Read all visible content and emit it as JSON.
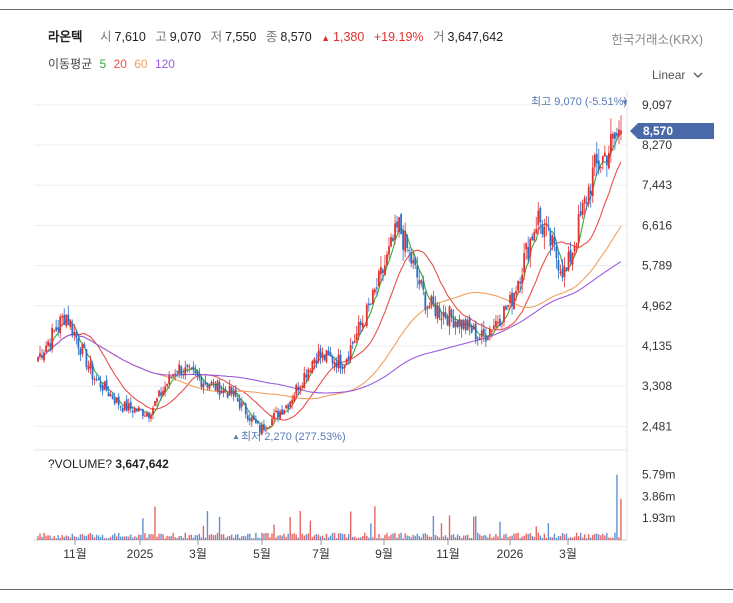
{
  "header": {
    "stock_name": "라온텍",
    "open_label": "시",
    "open": "7,610",
    "high_label": "고",
    "high": "9,070",
    "low_label": "저",
    "low": "7,550",
    "close_label": "종",
    "close": "8,570",
    "change_arrow": "▲",
    "change": "1,380",
    "change_pct": "+19.19%",
    "volume_label": "거",
    "volume": "3,647,642",
    "exchange": "한국거래소(KRX)"
  },
  "moving_average": {
    "label": "이동평균",
    "periods": [
      {
        "period": "5",
        "color": "#3aa83a"
      },
      {
        "period": "20",
        "color": "#e8504a"
      },
      {
        "period": "60",
        "color": "#f0a060"
      },
      {
        "period": "120",
        "color": "#9b5de0"
      }
    ]
  },
  "scale_selector": {
    "label": "Linear",
    "icon": "chevron-down-icon"
  },
  "annotations": {
    "high": "최고 9,070 (-5.51%)",
    "low": "최저 2,270 (277.53%)",
    "last_price": "8,570"
  },
  "volume_panel": {
    "title": "?VOLUME?",
    "value": "3,647,642",
    "ticks": [
      "5.79m",
      "3.86m",
      "1.93m"
    ]
  },
  "colors": {
    "up": "#e0312f",
    "down": "#2a6fc9",
    "badge": "#4a69a8"
  },
  "chart_data": {
    "type": "candlestick",
    "price_ticks": [
      "9,097",
      "8,270",
      "7,443",
      "6,616",
      "5,789",
      "4,962",
      "4,135",
      "3,308",
      "2,481"
    ],
    "ylim": [
      2200,
      9300
    ],
    "x_ticks": [
      "11월",
      "2025",
      "3월",
      "5월",
      "7월",
      "9월",
      "11월",
      "2026",
      "3월"
    ],
    "price_trend": [
      [
        "2024-09",
        3900
      ],
      [
        "2024-09",
        4800
      ],
      [
        "2024-10",
        3500
      ],
      [
        "2024-11",
        2900
      ],
      [
        "2024-12",
        2750
      ],
      [
        "2025-01",
        3700
      ],
      [
        "2025-02",
        3400
      ],
      [
        "2025-03",
        3150
      ],
      [
        "2025-04",
        2400
      ],
      [
        "2025-05",
        2950
      ],
      [
        "2025-06",
        3950
      ],
      [
        "2025-07",
        3800
      ],
      [
        "2025-08",
        5000
      ],
      [
        "2025-09",
        6600
      ],
      [
        "2025-10",
        5000
      ],
      [
        "2025-11",
        4700
      ],
      [
        "2025-12",
        4300
      ],
      [
        "2026-01",
        5000
      ],
      [
        "2026-02",
        6800
      ],
      [
        "2026-03",
        5600
      ],
      [
        "2026-04",
        7700
      ],
      [
        "2026-04",
        8570
      ]
    ],
    "high_point": {
      "value": 9070,
      "pct_from_last": "-5.51%"
    },
    "low_point": {
      "value": 2270,
      "pct_to_last": "277.53%"
    },
    "last": 8570,
    "volume_ticks": {
      "5.79m": 5790000,
      "3.86m": 3860000,
      "1.93m": 1930000
    },
    "last_volume": 3647642
  }
}
